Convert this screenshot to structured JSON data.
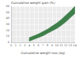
{
  "chart_data": {
    "type": "band",
    "y_label": "Cumulative weight gain (%)",
    "x_label": "Cumulative weight loss (kg)",
    "x": [
      4,
      5,
      6,
      7,
      8,
      9,
      10,
      11,
      12,
      13,
      14
    ],
    "lower": [
      2,
      5,
      8,
      11,
      15,
      19,
      23,
      28,
      34,
      41,
      48
    ],
    "upper": [
      8,
      11,
      14,
      18,
      22,
      27,
      32,
      38,
      45,
      52,
      60
    ],
    "color": "#3f7f4a",
    "xlim": [
      0,
      14
    ],
    "xticks": [
      0,
      1,
      2,
      3,
      4,
      5,
      6,
      7,
      8,
      9,
      10,
      11,
      12,
      13,
      14
    ],
    "ylim": [
      0,
      60
    ],
    "yticks": [
      0,
      10,
      20,
      30,
      40,
      50,
      60
    ],
    "grid": true
  }
}
